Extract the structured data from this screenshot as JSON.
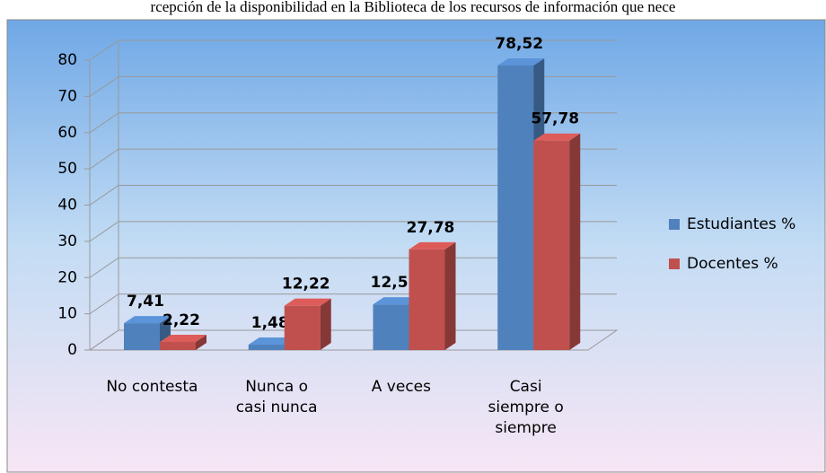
{
  "chart_data": {
    "type": "bar3d",
    "title": "rcepción de la disponibilidad en la Biblioteca de los recursos de información que nece",
    "categories": [
      "No contesta",
      "Nunca o\ncasi nunca",
      "A veces",
      "Casi\nsiempre o\nsiempre"
    ],
    "series": [
      {
        "name": "Estudiantes %",
        "color": "#4f81bd",
        "values": [
          7.41,
          1.48,
          12.59,
          78.52
        ],
        "value_labels": [
          "7,41",
          "1,48",
          "12,59",
          "78,52"
        ]
      },
      {
        "name": "Docentes %",
        "color": "#c0504d",
        "values": [
          2.22,
          12.22,
          27.78,
          57.78
        ],
        "value_labels": [
          "2,22",
          "12,22",
          "27,78",
          "57,78"
        ]
      }
    ],
    "ylim": [
      0,
      80
    ],
    "yticks": [
      0,
      10,
      20,
      30,
      40,
      50,
      60,
      70,
      80
    ],
    "grid": true,
    "legend": "right"
  }
}
